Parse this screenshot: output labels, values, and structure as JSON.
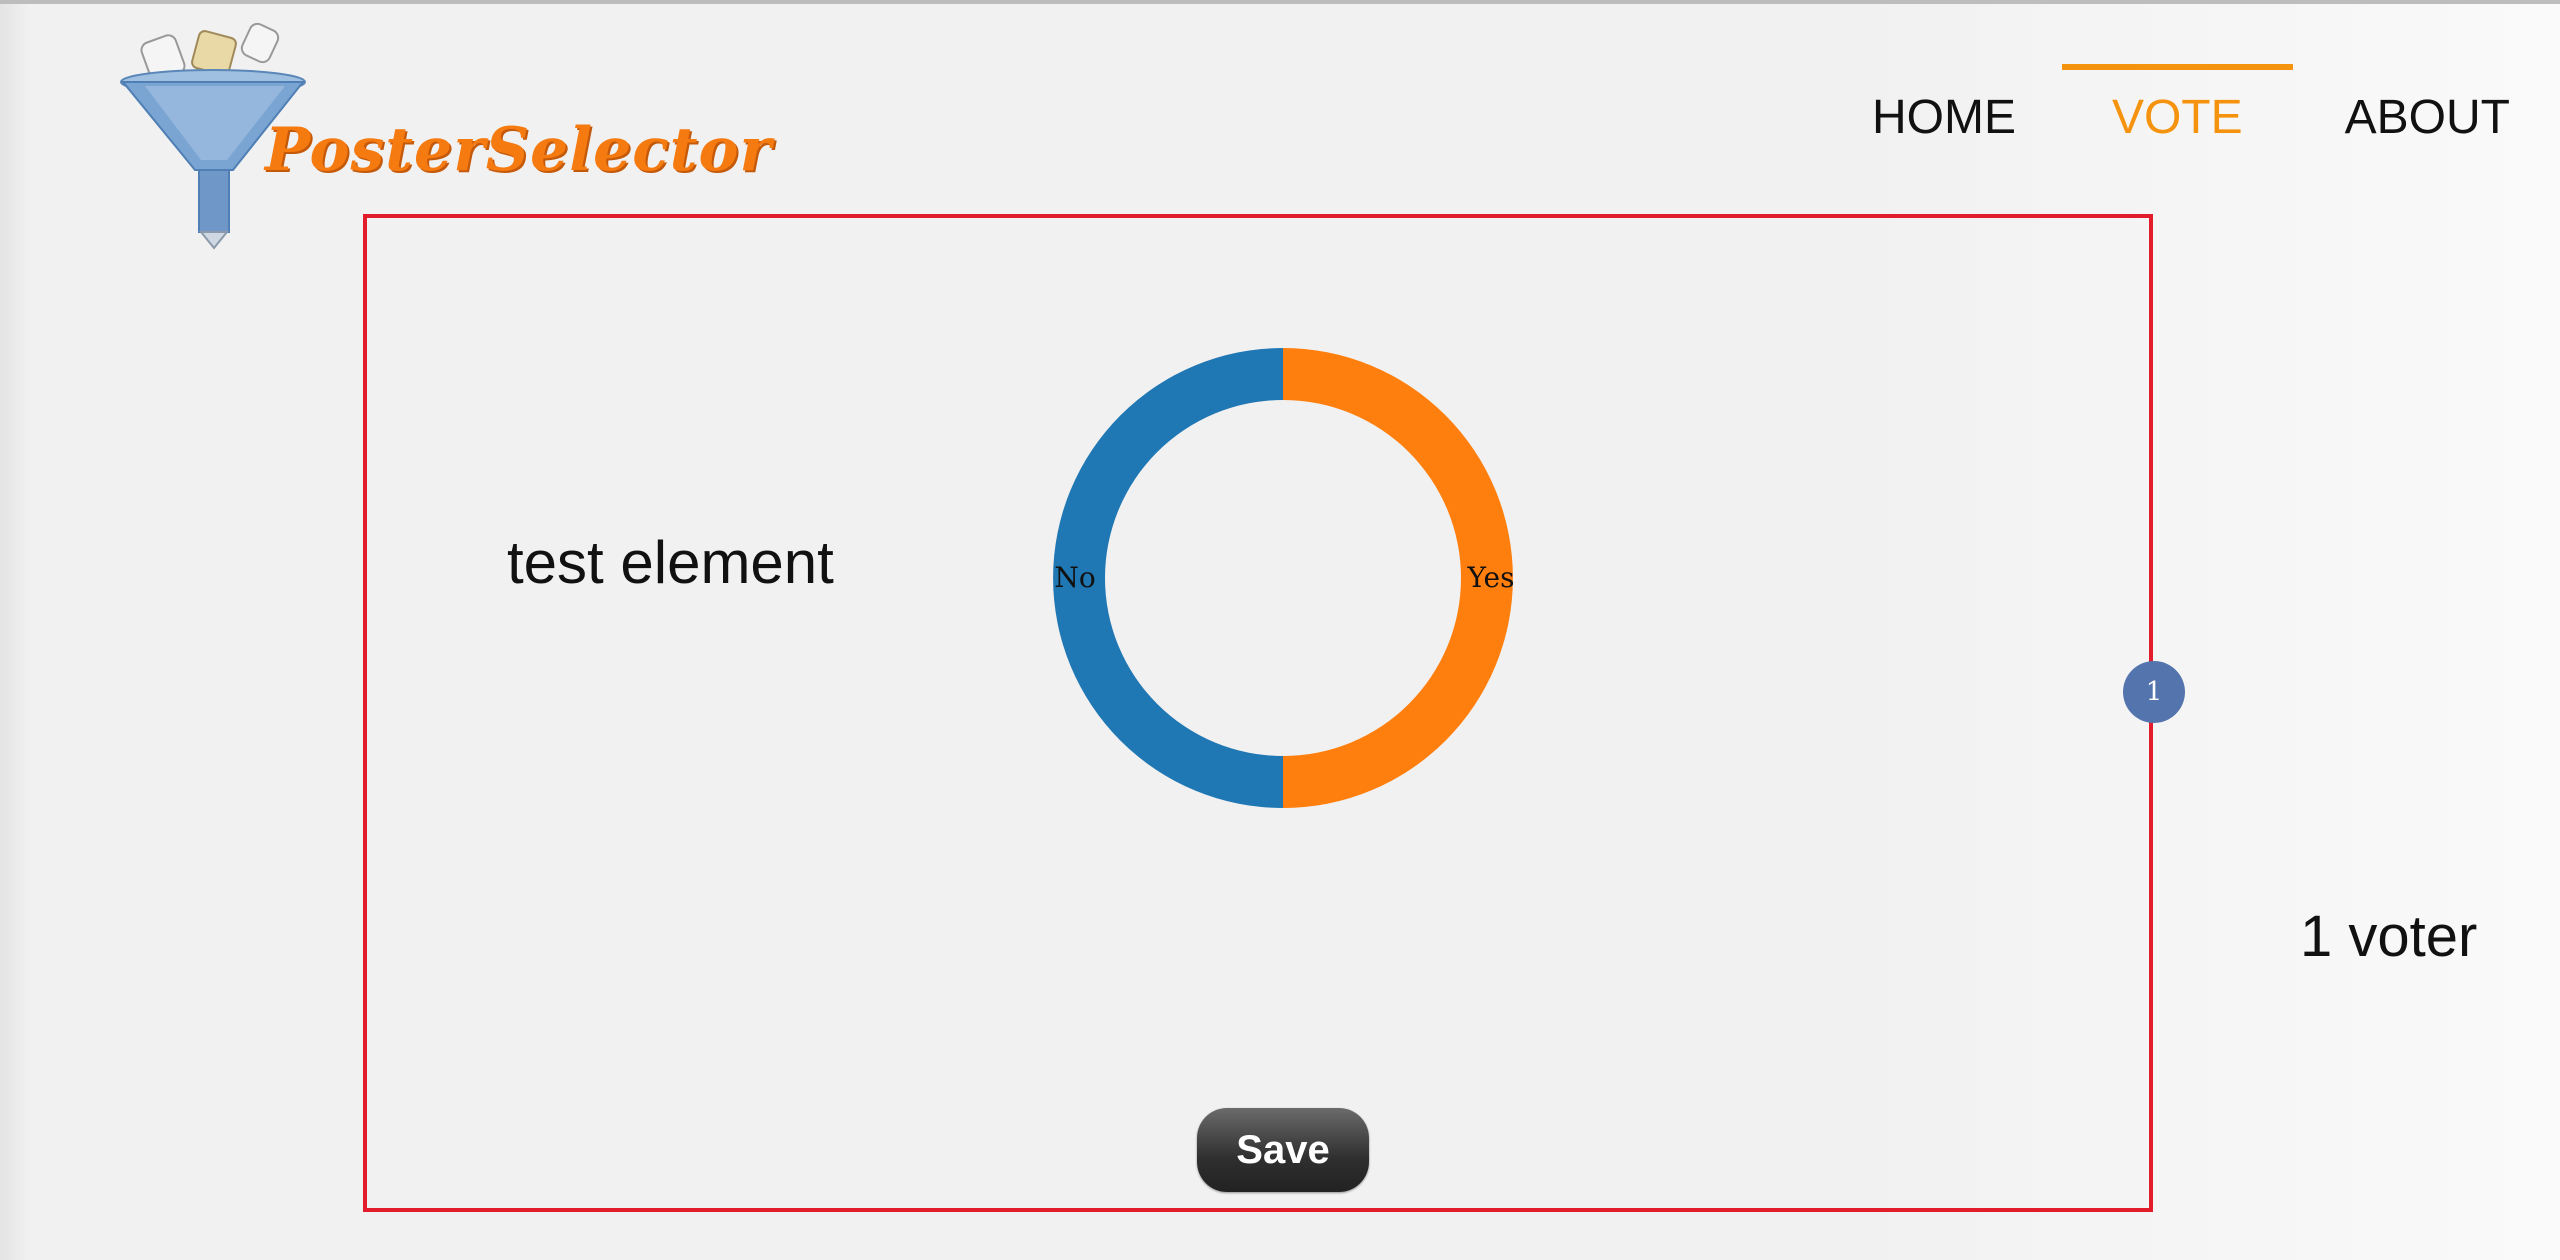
{
  "app": {
    "logo_text": "PosterSelector"
  },
  "nav": {
    "items": [
      {
        "label": "HOME",
        "active": false
      },
      {
        "label": "VOTE",
        "active": true
      },
      {
        "label": "ABOUT",
        "active": false
      }
    ]
  },
  "vote_panel": {
    "element_title": "test element",
    "save_label": "Save",
    "handle_label": "1"
  },
  "voter_count": "1 voter",
  "colors": {
    "accent": "#f5930f",
    "panel_border": "#e31c2b",
    "no_color": "#1f77b4",
    "yes_color": "#ff7f0e",
    "handle": "#5474ad"
  },
  "chart_data": {
    "type": "pie",
    "categories": [
      "No",
      "Yes"
    ],
    "values": [
      1,
      1
    ],
    "colors": [
      "#1f77b4",
      "#ff7f0e"
    ]
  }
}
